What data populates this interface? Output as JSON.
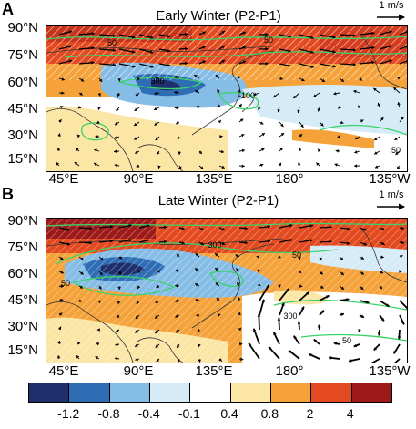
{
  "panels": [
    {
      "letter": "A",
      "title": "Early Winter (P2-P1)",
      "ref_vector_label": "1 m/s",
      "contour_labels": [
        "50",
        "50",
        "300",
        "-100",
        "50"
      ]
    },
    {
      "letter": "B",
      "title": "Late Winter (P2-P1)",
      "ref_vector_label": "1 m/s",
      "contour_labels": [
        "50",
        "300",
        "50",
        "300",
        "50"
      ]
    }
  ],
  "y_axis_labels": [
    "90°N",
    "75°N",
    "60°N",
    "45°N",
    "30°N",
    "15°N"
  ],
  "x_axis_labels": [
    "45°E",
    "90°E",
    "135°E",
    "180°",
    "135°W"
  ],
  "colorbar": {
    "ticks": [
      "-1.2",
      "-0.8",
      "-0.4",
      "-0.1",
      "0.4",
      "0.8",
      "2",
      "4"
    ],
    "colors": [
      "#1f2f6b",
      "#2f6db5",
      "#86bde6",
      "#d5ebf7",
      "#ffffff",
      "#fbe6a6",
      "#f5a23a",
      "#e34a1f",
      "#9e1a1a"
    ]
  },
  "colors": {
    "contour": "#39d46a",
    "vector": "#000000",
    "coast": "#333333"
  }
}
